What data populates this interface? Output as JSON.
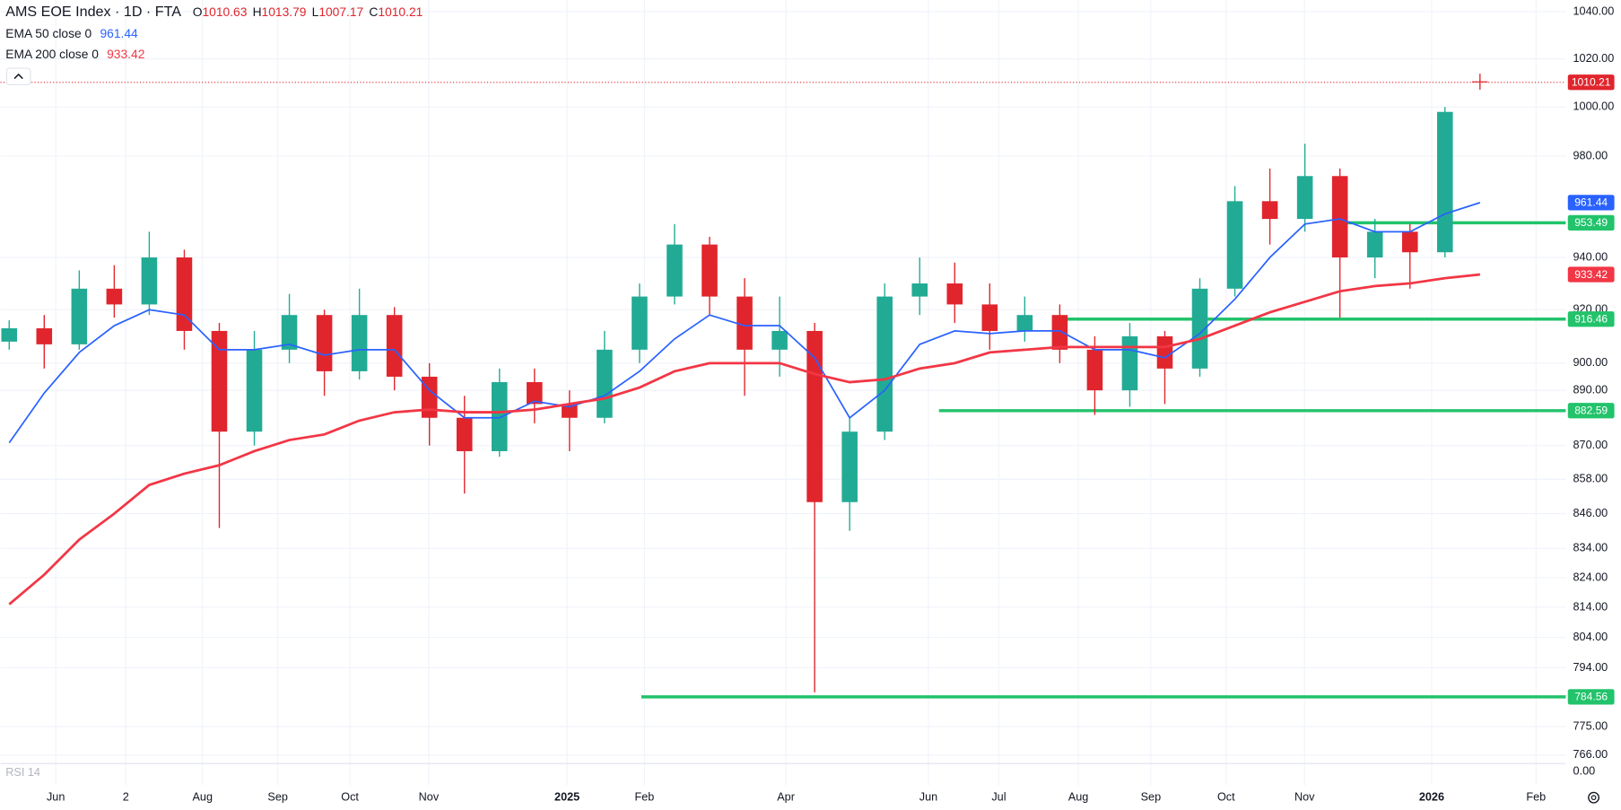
{
  "chart_data": {
    "type": "candlestick",
    "title": "AMS EOE Index · 1D · FTA",
    "ohlc_labels": [
      "O",
      "H",
      "L",
      "C"
    ],
    "log_scale": true,
    "grid": true,
    "up_color": "#22ab94",
    "down_color": "#e0252d",
    "candles": {
      "open": [
        908,
        913,
        907,
        928,
        922,
        940,
        912,
        875,
        905,
        918,
        897,
        918,
        895,
        880,
        868,
        893,
        885,
        880,
        905,
        925,
        945,
        925,
        905,
        912,
        850,
        875,
        925,
        930,
        922,
        912,
        918,
        905,
        890,
        910,
        898,
        928,
        962,
        955,
        972,
        940,
        950,
        942,
        1010.63
      ],
      "high": [
        916,
        918,
        935,
        937,
        950,
        943,
        915,
        912,
        926,
        920,
        928,
        921,
        900,
        888,
        898,
        898,
        890,
        912,
        930,
        953,
        948,
        932,
        925,
        915,
        880,
        930,
        940,
        938,
        930,
        925,
        922,
        910,
        915,
        912,
        932,
        968,
        975,
        985,
        975,
        955,
        953,
        1000,
        1013.79
      ],
      "low": [
        905,
        898,
        905,
        917,
        918,
        905,
        841,
        870,
        900,
        888,
        894,
        890,
        870,
        853,
        866,
        878,
        868,
        878,
        900,
        922,
        918,
        888,
        895,
        786,
        840,
        872,
        918,
        915,
        905,
        908,
        900,
        881,
        884,
        885,
        895,
        925,
        945,
        950,
        917,
        932,
        928,
        940,
        1007.17
      ],
      "close": [
        913,
        907,
        928,
        922,
        940,
        912,
        875,
        905,
        918,
        897,
        918,
        895,
        880,
        868,
        893,
        885,
        880,
        905,
        925,
        945,
        925,
        905,
        912,
        850,
        875,
        925,
        930,
        922,
        912,
        918,
        905,
        890,
        910,
        898,
        928,
        962,
        955,
        972,
        940,
        950,
        942,
        998,
        1010.21
      ]
    },
    "series": [
      {
        "name": "EMA 50 close 0",
        "color": "#2962ff",
        "values": [
          871,
          889,
          904,
          914,
          920,
          918,
          905,
          905,
          907,
          903,
          905,
          905,
          890,
          880,
          880,
          886,
          884,
          888,
          897,
          909,
          918,
          914,
          914,
          902,
          880,
          890,
          907,
          912,
          911,
          912,
          912,
          905,
          905,
          902,
          911,
          924,
          940,
          953,
          955,
          950,
          950,
          957,
          961.44
        ]
      },
      {
        "name": "EMA 200 close 0",
        "color": "#f23645",
        "values": [
          815,
          825,
          837,
          846,
          856,
          860,
          863,
          868,
          872,
          874,
          879,
          882,
          883,
          882,
          882,
          883,
          885,
          887,
          891,
          897,
          900,
          900,
          900,
          896,
          893,
          894,
          898,
          900,
          904,
          905,
          906,
          906,
          906,
          906,
          909,
          914,
          919,
          923,
          927,
          929,
          930,
          932,
          933.42
        ]
      }
    ],
    "levels_color": "#22c36b",
    "levels": [
      {
        "value": 953.49,
        "start": 37.8
      },
      {
        "value": 916.46,
        "start": 29.85
      },
      {
        "value": 882.59,
        "start": 26.55
      },
      {
        "value": 784.56,
        "start": 18.05
      }
    ],
    "xlim": [
      -0.25,
      44.45
    ],
    "xticks": [
      {
        "value": 1.33,
        "label": "Jun"
      },
      {
        "value": 3.33,
        "label": "2"
      },
      {
        "value": 5.52,
        "label": "Aug"
      },
      {
        "value": 7.67,
        "label": "Sep"
      },
      {
        "value": 9.73,
        "label": "Oct"
      },
      {
        "value": 11.98,
        "label": "Nov"
      },
      {
        "value": 15.93,
        "label": "2025"
      },
      {
        "value": 18.14,
        "label": "Feb"
      },
      {
        "value": 22.18,
        "label": "Apr"
      },
      {
        "value": 26.25,
        "label": "Jun"
      },
      {
        "value": 28.26,
        "label": "Jul"
      },
      {
        "value": 30.53,
        "label": "Aug"
      },
      {
        "value": 32.6,
        "label": "Sep"
      },
      {
        "value": 34.75,
        "label": "Oct"
      },
      {
        "value": 36.99,
        "label": "Nov"
      },
      {
        "value": 40.62,
        "label": "2026"
      },
      {
        "value": 43.6,
        "label": "Feb"
      }
    ],
    "ylim": [
      764,
      1045
    ],
    "yticks": [
      {
        "value": 1040,
        "label": "1040.00"
      },
      {
        "value": 1020,
        "label": "1020.00"
      },
      {
        "value": 1000,
        "label": "1000.00"
      },
      {
        "value": 980,
        "label": "980.00"
      },
      {
        "value": 940,
        "label": "940.00"
      },
      {
        "value": 920,
        "label": "920.00"
      },
      {
        "value": 900,
        "label": "900.00"
      },
      {
        "value": 890,
        "label": "890.00"
      },
      {
        "value": 870,
        "label": "870.00"
      },
      {
        "value": 858,
        "label": "858.00"
      },
      {
        "value": 846,
        "label": "846.00"
      },
      {
        "value": 834,
        "label": "834.00"
      },
      {
        "value": 824,
        "label": "824.00"
      },
      {
        "value": 814,
        "label": "814.00"
      },
      {
        "value": 804,
        "label": "804.00"
      },
      {
        "value": 794,
        "label": "794.00"
      },
      {
        "value": 775,
        "label": "775.00"
      },
      {
        "value": 766,
        "label": "766.00"
      }
    ],
    "rsi": {
      "label": "RSI 14",
      "yticks": [
        {
          "value": 0,
          "label": "0.00"
        }
      ]
    }
  }
}
